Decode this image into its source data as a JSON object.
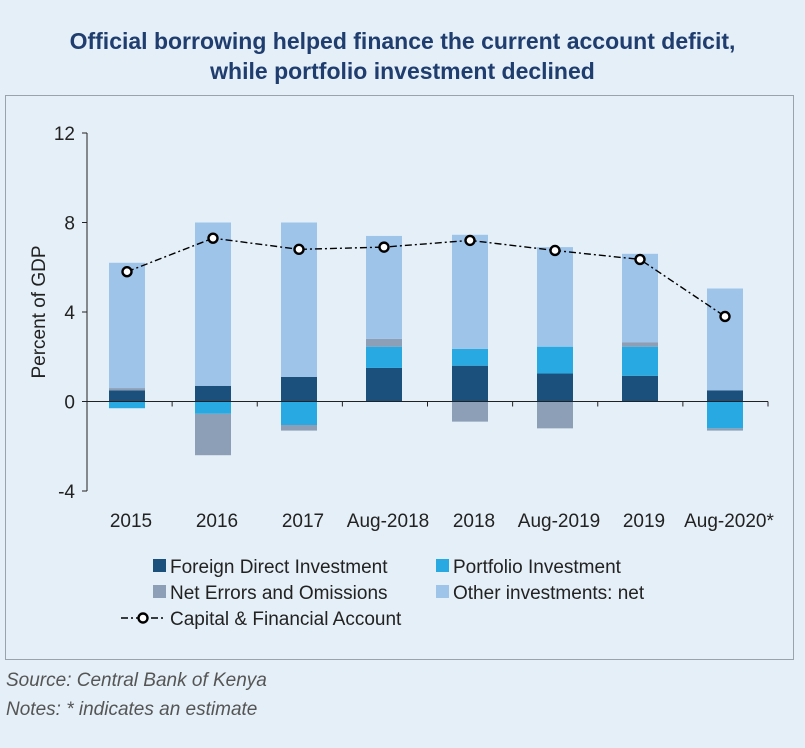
{
  "title_lines": [
    "Official borrowing helped finance the current account deficit,",
    "while portfolio investment declined"
  ],
  "source": "Source: Central Bank of Kenya",
  "notes": "Notes: * indicates an estimate",
  "chart_data": {
    "type": "bar",
    "stacked": true,
    "title": "Official borrowing helped finance the current account deficit, while portfolio investment declined",
    "ylabel": "Percent of GDP",
    "xlabel": "",
    "ylim": [
      -4,
      12
    ],
    "yticks": [
      -4,
      0,
      4,
      8,
      12
    ],
    "grid": false,
    "legend_position": "bottom",
    "categories": [
      "2015",
      "2016",
      "2017",
      "Aug-2018",
      "2018",
      "Aug-2019",
      "2019",
      "Aug-2020*"
    ],
    "series": [
      {
        "name": "Foreign Direct Investment",
        "kind": "bar",
        "color": "#1b4f7c",
        "values": [
          0.5,
          0.7,
          1.1,
          1.5,
          1.6,
          1.25,
          1.15,
          0.5
        ]
      },
      {
        "name": "Portfolio Investment",
        "kind": "bar",
        "color": "#29a9e1",
        "values": [
          -0.3,
          -0.55,
          -1.05,
          0.95,
          0.75,
          1.2,
          1.3,
          -1.2
        ]
      },
      {
        "name": "Net Errors and Omissions",
        "kind": "bar",
        "color": "#8d9fb6",
        "values": [
          0.1,
          -1.85,
          -0.25,
          0.35,
          -0.9,
          -1.2,
          0.2,
          -0.1
        ]
      },
      {
        "name": "Other investments: net",
        "kind": "bar",
        "color": "#9ec4ea",
        "values": [
          5.6,
          7.3,
          6.9,
          4.6,
          5.1,
          4.45,
          3.95,
          4.55
        ]
      },
      {
        "name": "Capital & Financial Account",
        "kind": "line",
        "color": "#000000",
        "values": [
          5.8,
          7.3,
          6.8,
          6.9,
          7.2,
          6.75,
          6.35,
          3.8
        ]
      }
    ]
  }
}
